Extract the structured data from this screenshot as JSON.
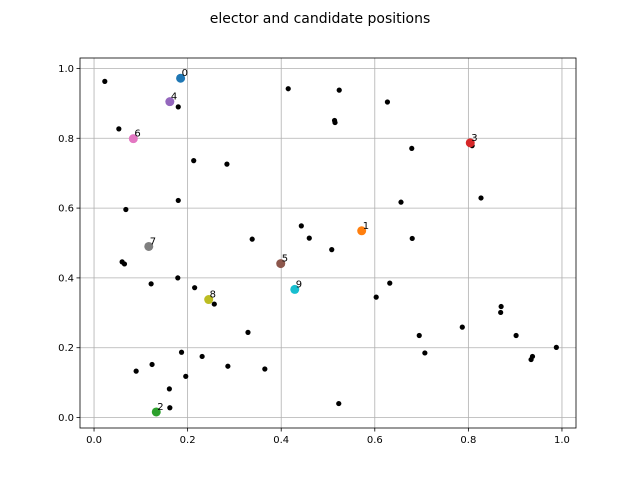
{
  "chart_data": {
    "type": "scatter",
    "title": "elector and candidate positions",
    "xlabel": "",
    "ylabel": "",
    "xlim": [
      -0.03,
      1.03
    ],
    "ylim": [
      -0.03,
      1.03
    ],
    "xticks": [
      0.0,
      0.2,
      0.4,
      0.6,
      0.8,
      1.0
    ],
    "yticks": [
      0.0,
      0.2,
      0.4,
      0.6,
      0.8,
      1.0
    ],
    "xtick_labels": [
      "0.0",
      "0.2",
      "0.4",
      "0.6",
      "0.8",
      "1.0"
    ],
    "ytick_labels": [
      "0.0",
      "0.2",
      "0.4",
      "0.6",
      "0.8",
      "1.0"
    ],
    "grid": true,
    "legend": "none",
    "electors": {
      "color": "#000000",
      "points": [
        [
          0.023,
          0.963
        ],
        [
          0.053,
          0.827
        ],
        [
          0.068,
          0.596
        ],
        [
          0.06,
          0.446
        ],
        [
          0.065,
          0.44
        ],
        [
          0.09,
          0.133
        ],
        [
          0.122,
          0.383
        ],
        [
          0.124,
          0.152
        ],
        [
          0.161,
          0.082
        ],
        [
          0.162,
          0.028
        ],
        [
          0.18,
          0.89
        ],
        [
          0.18,
          0.622
        ],
        [
          0.179,
          0.4
        ],
        [
          0.187,
          0.187
        ],
        [
          0.196,
          0.118
        ],
        [
          0.213,
          0.736
        ],
        [
          0.215,
          0.372
        ],
        [
          0.231,
          0.175
        ],
        [
          0.257,
          0.325
        ],
        [
          0.284,
          0.726
        ],
        [
          0.286,
          0.147
        ],
        [
          0.329,
          0.244
        ],
        [
          0.338,
          0.511
        ],
        [
          0.365,
          0.139
        ],
        [
          0.415,
          0.942
        ],
        [
          0.443,
          0.549
        ],
        [
          0.46,
          0.514
        ],
        [
          0.508,
          0.481
        ],
        [
          0.514,
          0.851
        ],
        [
          0.515,
          0.845
        ],
        [
          0.524,
          0.938
        ],
        [
          0.523,
          0.04
        ],
        [
          0.603,
          0.345
        ],
        [
          0.627,
          0.904
        ],
        [
          0.632,
          0.385
        ],
        [
          0.656,
          0.617
        ],
        [
          0.679,
          0.771
        ],
        [
          0.68,
          0.513
        ],
        [
          0.695,
          0.235
        ],
        [
          0.707,
          0.185
        ],
        [
          0.787,
          0.259
        ],
        [
          0.808,
          0.779
        ],
        [
          0.827,
          0.629
        ],
        [
          0.869,
          0.301
        ],
        [
          0.87,
          0.318
        ],
        [
          0.902,
          0.235
        ],
        [
          0.934,
          0.166
        ],
        [
          0.937,
          0.175
        ],
        [
          0.988,
          0.201
        ]
      ]
    },
    "candidates": [
      {
        "label": "0",
        "x": 0.185,
        "y": 0.972,
        "color": "#1f77b4"
      },
      {
        "label": "1",
        "x": 0.572,
        "y": 0.535,
        "color": "#ff7f0e"
      },
      {
        "label": "2",
        "x": 0.133,
        "y": 0.016,
        "color": "#2ca02c"
      },
      {
        "label": "3",
        "x": 0.804,
        "y": 0.787,
        "color": "#d62728"
      },
      {
        "label": "4",
        "x": 0.162,
        "y": 0.905,
        "color": "#9467bd"
      },
      {
        "label": "5",
        "x": 0.399,
        "y": 0.441,
        "color": "#8c564b"
      },
      {
        "label": "6",
        "x": 0.084,
        "y": 0.799,
        "color": "#e377c2"
      },
      {
        "label": "7",
        "x": 0.117,
        "y": 0.49,
        "color": "#7f7f7f"
      },
      {
        "label": "8",
        "x": 0.245,
        "y": 0.338,
        "color": "#bcbd22"
      },
      {
        "label": "9",
        "x": 0.429,
        "y": 0.367,
        "color": "#17becf"
      }
    ]
  }
}
